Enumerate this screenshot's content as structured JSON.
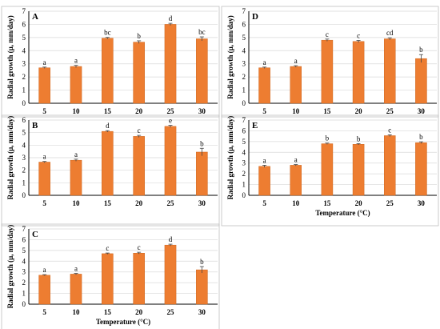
{
  "colors": {
    "bar": "#ED7D31",
    "bar_edge": "#C55A11",
    "axis": "#000000",
    "grid": "#D9D9D9"
  },
  "chart_data": [
    {
      "type": "bar",
      "panel": "A",
      "categories": [
        "5",
        "10",
        "15",
        "20",
        "25",
        "30"
      ],
      "values": [
        2.7,
        2.8,
        4.95,
        4.65,
        6.0,
        4.9
      ],
      "errors": [
        0.05,
        0.08,
        0.06,
        0.1,
        0.08,
        0.15
      ],
      "letters": [
        "a",
        "a",
        "bc",
        "b",
        "d",
        "bc"
      ],
      "yticks": [
        "0",
        "1",
        "2",
        "3",
        "4",
        "5",
        "6",
        "7"
      ],
      "ylim": [
        0,
        7
      ],
      "ylabel": "Radial growth (µ, mm/day)",
      "xlabel": "",
      "grid": true
    },
    {
      "type": "bar",
      "panel": "B",
      "categories": [
        "5",
        "10",
        "15",
        "20",
        "25",
        "30"
      ],
      "values": [
        2.65,
        2.8,
        5.1,
        4.7,
        5.5,
        3.45
      ],
      "errors": [
        0.05,
        0.08,
        0.06,
        0.08,
        0.08,
        0.3
      ],
      "letters": [
        "a",
        "a",
        "d",
        "c",
        "e",
        "b"
      ],
      "yticks": [
        "0",
        "1",
        "2",
        "3",
        "4",
        "5",
        "6"
      ],
      "ylim": [
        0,
        6
      ],
      "ylabel": "Radial growth (µ, mm/day)",
      "xlabel": "",
      "grid": true
    },
    {
      "type": "bar",
      "panel": "C",
      "categories": [
        "5",
        "10",
        "15",
        "20",
        "25",
        "30"
      ],
      "values": [
        2.7,
        2.8,
        4.7,
        4.75,
        5.5,
        3.2
      ],
      "errors": [
        0.05,
        0.06,
        0.06,
        0.08,
        0.08,
        0.3
      ],
      "letters": [
        "a",
        "a",
        "c",
        "c",
        "d",
        "b"
      ],
      "yticks": [
        "0",
        "1",
        "2",
        "3",
        "4",
        "5",
        "6",
        "7"
      ],
      "ylim": [
        0,
        7
      ],
      "ylabel": "Radial growth (µ, mm/day)",
      "xlabel": "Temperature (°C)",
      "grid": true
    },
    {
      "type": "bar",
      "panel": "D",
      "categories": [
        "5",
        "10",
        "15",
        "20",
        "25",
        "30"
      ],
      "values": [
        2.7,
        2.8,
        4.8,
        4.7,
        4.9,
        3.4
      ],
      "errors": [
        0.05,
        0.06,
        0.08,
        0.08,
        0.08,
        0.3
      ],
      "letters": [
        "a",
        "a",
        "c",
        "c",
        "cd",
        "b"
      ],
      "yticks": [
        "0",
        "1",
        "2",
        "3",
        "4",
        "5",
        "6",
        "7"
      ],
      "ylim": [
        0,
        7
      ],
      "ylabel": "Radial growth (µ, mm/day)",
      "xlabel": "",
      "grid": true
    },
    {
      "type": "bar",
      "panel": "E",
      "categories": [
        "5",
        "10",
        "15",
        "20",
        "25",
        "30"
      ],
      "values": [
        2.7,
        2.8,
        4.8,
        4.75,
        5.55,
        4.9
      ],
      "errors": [
        0.1,
        0.06,
        0.06,
        0.06,
        0.08,
        0.08
      ],
      "letters": [
        "a",
        "a",
        "b",
        "b",
        "c",
        "b"
      ],
      "yticks": [
        "0",
        "1",
        "2",
        "3",
        "4",
        "5",
        "6",
        "7"
      ],
      "ylim": [
        0,
        7
      ],
      "ylabel": "Radial growth (µ, mm/day)",
      "xlabel": "Temperature (°C)",
      "grid": true
    }
  ]
}
